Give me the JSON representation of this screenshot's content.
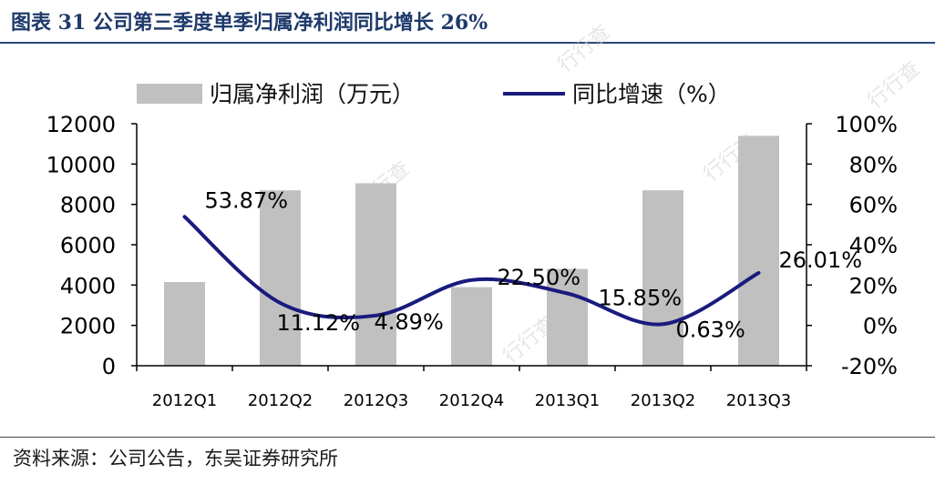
{
  "header": {
    "title": "图表 31 公司第三季度单季归属净利润同比增长 26%"
  },
  "footer": {
    "source": "资料来源：公司公告，东吴证券研究所"
  },
  "watermark": {
    "text": "行行查"
  },
  "colors": {
    "bar": "#c0c0c0",
    "line": "#1a1a7e",
    "title": "#1f3a6b",
    "axis": "#000000"
  },
  "chart_data": {
    "type": "bar",
    "categories": [
      "2012Q1",
      "2012Q2",
      "2012Q3",
      "2012Q4",
      "2013Q1",
      "2013Q2",
      "2013Q3"
    ],
    "series": [
      {
        "name": "归属净利润（万元）",
        "type": "bar",
        "axis": "left",
        "values": [
          4150,
          8700,
          9050,
          3900,
          4800,
          8700,
          11400
        ]
      },
      {
        "name": "同比增速（%）",
        "type": "line",
        "axis": "right",
        "smooth": true,
        "values": [
          53.87,
          11.12,
          4.89,
          22.5,
          15.85,
          0.63,
          26.01
        ],
        "labels": [
          "53.87%",
          "11.12%",
          "4.89%",
          "22.50%",
          "15.85%",
          "0.63%",
          "26.01%"
        ]
      }
    ],
    "y_left": {
      "ylim": [
        0,
        12000
      ],
      "ticks": [
        "0",
        "2000",
        "4000",
        "6000",
        "8000",
        "10000",
        "12000"
      ]
    },
    "y_right": {
      "ylim": [
        -20,
        100
      ],
      "ticks": [
        "-20%",
        "0%",
        "20%",
        "40%",
        "60%",
        "80%",
        "100%"
      ]
    },
    "grid": false,
    "legend": "top"
  }
}
